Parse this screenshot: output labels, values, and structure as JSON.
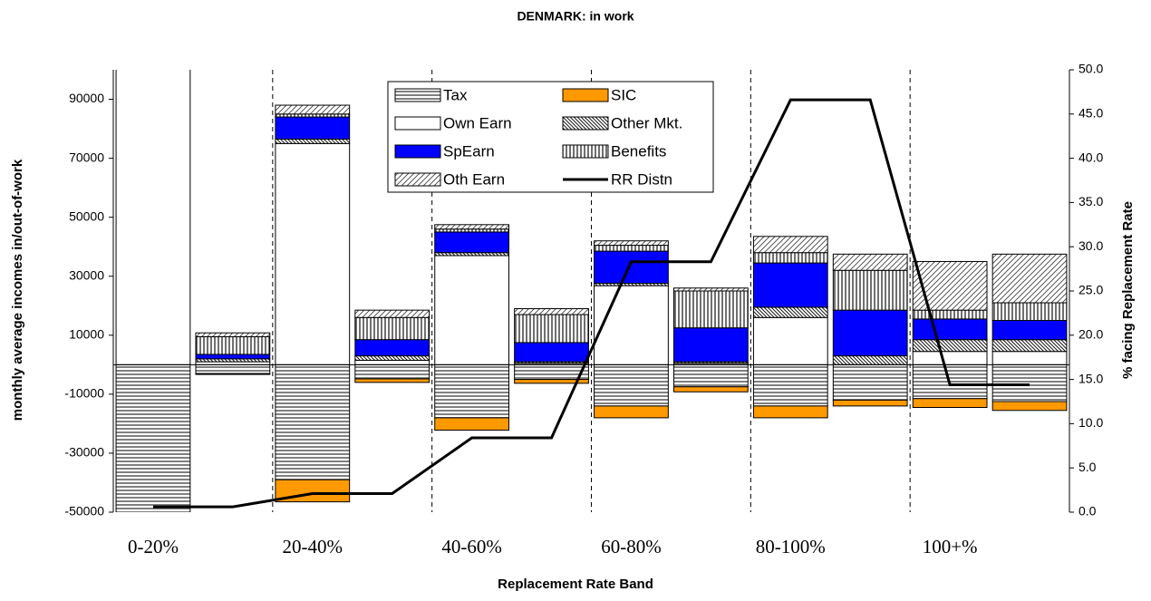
{
  "chart_data": {
    "type": "bar",
    "stacked": true,
    "title": "DENMARK: in work",
    "x_label": "Replacement Rate Band",
    "y_label": "monthly average incomes in/out-of-work",
    "y2_label": "% facing Replacement Rate",
    "categories": [
      "0-20%",
      null,
      "20-40%",
      null,
      "40-60%",
      null,
      "60-80%",
      null,
      "80-100%",
      null,
      "100+%",
      null
    ],
    "ylim": [
      -50000,
      100000
    ],
    "yticks": [
      -50000,
      -30000,
      -10000,
      10000,
      30000,
      50000,
      70000,
      90000
    ],
    "y2lim": [
      0,
      50
    ],
    "y2ticks": [
      {
        "value": 0,
        "label": "0.0"
      },
      {
        "value": 5,
        "label": "5.0"
      },
      {
        "value": 10,
        "label": "10.0"
      },
      {
        "value": 15,
        "label": "15.0"
      },
      {
        "value": 20,
        "label": "20.0"
      },
      {
        "value": 25,
        "label": "25.0"
      },
      {
        "value": 30,
        "label": "30.0"
      },
      {
        "value": 35,
        "label": "35.0"
      },
      {
        "value": 40,
        "label": "40.0"
      },
      {
        "value": 45,
        "label": "45.0"
      },
      {
        "value": 50,
        "label": "50.0"
      }
    ],
    "legend": "top",
    "series": [
      {
        "name": "Tax",
        "color": "#808080",
        "pattern": "horizontal",
        "values": [
          -60000,
          -3000,
          -39000,
          -4800,
          -18000,
          -5000,
          -14000,
          -7500,
          -14000,
          -12000,
          -11500,
          -12500
        ]
      },
      {
        "name": "SIC",
        "color": "#ff9900",
        "pattern": "solid",
        "values": [
          0,
          -300,
          -7500,
          -1200,
          -4200,
          -1300,
          -4000,
          -1700,
          -4000,
          -2000,
          -3000,
          -3000
        ]
      },
      {
        "name": "Own Earn",
        "color": "#ffffff",
        "pattern": "solid",
        "values": [
          110000,
          1000,
          75000,
          1500,
          37000,
          500,
          26800,
          500,
          16000,
          0,
          4500,
          4500
        ]
      },
      {
        "name": "Other Mkt.",
        "color": "#000000",
        "pattern": "diagonal",
        "values": [
          0,
          1000,
          1500,
          1500,
          1000,
          500,
          800,
          500,
          3500,
          3000,
          4000,
          4000
        ]
      },
      {
        "name": "SpEarn",
        "color": "#0000ff",
        "pattern": "solid",
        "values": [
          0,
          1500,
          7500,
          5500,
          7000,
          6500,
          10900,
          11500,
          15000,
          15500,
          7000,
          6500
        ]
      },
      {
        "name": "Benefits",
        "color": "#000000",
        "pattern": "vertical",
        "values": [
          0,
          6000,
          1000,
          7500,
          1000,
          9500,
          2000,
          12500,
          3500,
          13500,
          3000,
          6000
        ]
      },
      {
        "name": "Oth Earn",
        "color": "#000000",
        "pattern": "diagonal-light",
        "values": [
          0,
          1300,
          3000,
          2500,
          1500,
          2000,
          1500,
          1000,
          5500,
          5500,
          16500,
          16500
        ]
      },
      {
        "name": "RR Distn",
        "type": "line",
        "axis": "y2",
        "color": "#000000",
        "values": [
          0.6,
          0.6,
          2.1,
          2.1,
          8.4,
          8.4,
          28.3,
          28.3,
          46.6,
          46.6,
          14.4,
          14.4
        ]
      }
    ]
  }
}
